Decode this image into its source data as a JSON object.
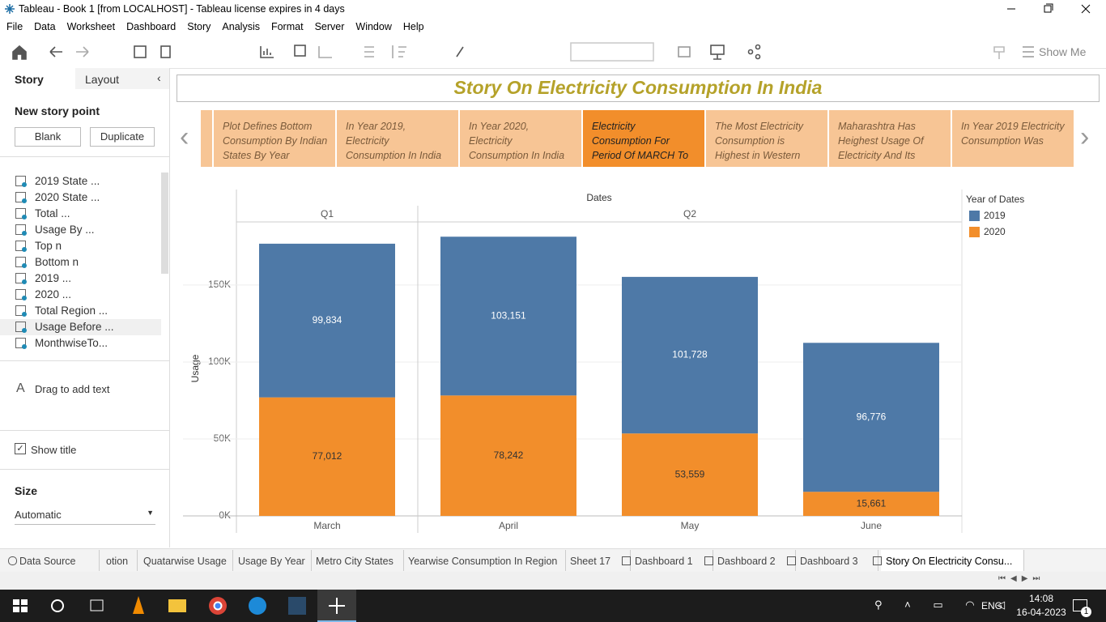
{
  "window": {
    "title": "Tableau - Book 1 [from LOCALHOST] - Tableau license expires in 4 days"
  },
  "menu": [
    "File",
    "Data",
    "Worksheet",
    "Dashboard",
    "Story",
    "Analysis",
    "Format",
    "Server",
    "Window",
    "Help"
  ],
  "toolbar": {
    "show_me": "Show Me"
  },
  "sidebar": {
    "tabs": [
      "Story",
      "Layout"
    ],
    "new_story_point": "New story point",
    "buttons": [
      "Blank",
      "Duplicate"
    ],
    "sheets": [
      "2019 State ...",
      "2020 State ...",
      "Total ...",
      "Usage By ...",
      "Top n",
      "Bottom n",
      "2019 ...",
      "2020 ...",
      "Total Region ...",
      "Usage Before ...",
      "MonthwiseTo..."
    ],
    "drag_text": "Drag to add text",
    "show_title": "Show title",
    "size_label": "Size",
    "size_value": "Automatic"
  },
  "story": {
    "title": "Story On Electricity Consumption In India",
    "points": [
      "Plot Defines Bottom Consumption By Indian States By Year",
      "In Year 2019, Electricity Consumption In India",
      "In Year 2020, Electricity Consumption In India",
      "Electricity Consumption For Period Of MARCH To",
      "The Most Electricity Consumption is Highest in Western",
      "Maharashtra Has Heighest Usage Of Electricity And Its",
      "In Year 2019 Electricity Consumption Was"
    ],
    "selected_point": 3
  },
  "chart_data": {
    "type": "bar",
    "stacked": true,
    "x_title": "Dates",
    "y_title": "Usage",
    "legend_title": "Year of Dates",
    "categories": [
      "March",
      "April",
      "May",
      "June"
    ],
    "quarters": [
      "Q1",
      "Q2",
      "Q2",
      "Q2"
    ],
    "series": [
      {
        "name": "2019",
        "color": "#4e79a7",
        "values": [
          99834,
          103151,
          101728,
          96776
        ],
        "value_labels": [
          "99,834",
          "103,151",
          "101,728",
          "96,776"
        ]
      },
      {
        "name": "2020",
        "color": "#f28e2b",
        "values": [
          77012,
          78242,
          53559,
          15661
        ],
        "value_labels": [
          "77,012",
          "78,242",
          "53,559",
          "15,661"
        ]
      }
    ],
    "ylim": [
      0,
      191000
    ],
    "yticks": [
      {
        "value": 0,
        "label": "0K"
      },
      {
        "value": 50000,
        "label": "50K"
      },
      {
        "value": 100000,
        "label": "100K"
      },
      {
        "value": 150000,
        "label": "150K"
      }
    ],
    "grid": true
  },
  "sheet_tabs": [
    "Data Source",
    "otion",
    "Quatarwise Usage",
    "Usage By Year",
    "Metro City States",
    "Yearwise Consumption In Region",
    "Sheet 17",
    "Dashboard 1",
    "Dashboard 2",
    "Dashboard 3",
    "Story On Electricity Consu..."
  ],
  "taskbar": {
    "language": "ENG",
    "time": "14:08",
    "date": "16-04-2023",
    "notifications": "1"
  }
}
